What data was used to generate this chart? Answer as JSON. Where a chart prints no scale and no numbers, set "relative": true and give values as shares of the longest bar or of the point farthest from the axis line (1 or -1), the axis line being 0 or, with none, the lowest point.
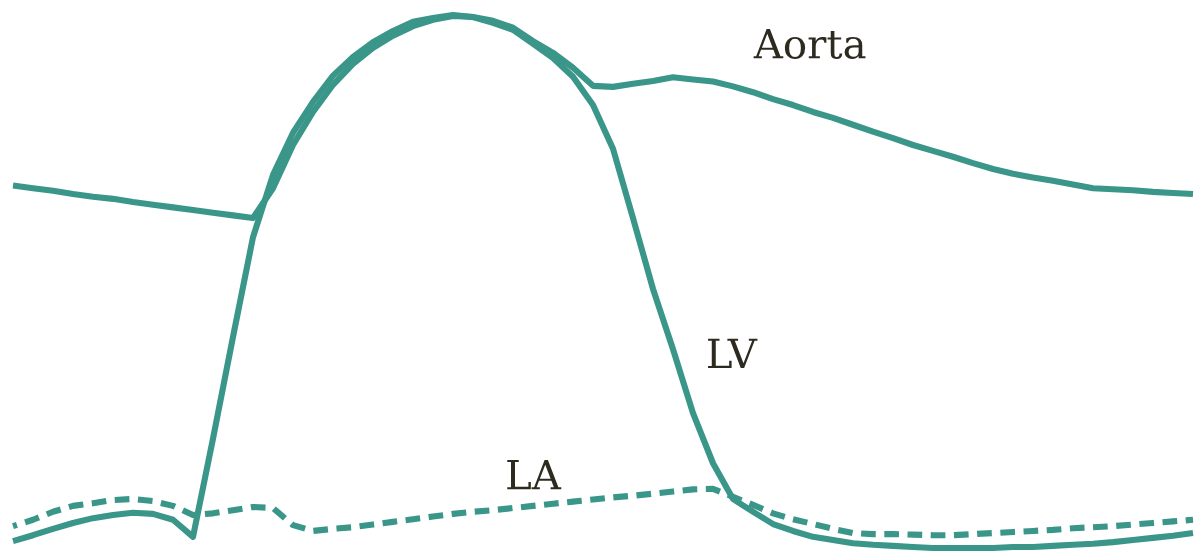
{
  "chart_data": {
    "type": "line",
    "relative": true,
    "categories": [
      null,
      null,
      null,
      null,
      null,
      null,
      null,
      null,
      null,
      null,
      null,
      null,
      null,
      null,
      null,
      null,
      null,
      null,
      null,
      null,
      null,
      null,
      null,
      null,
      null,
      null,
      null,
      null,
      null,
      null,
      null,
      null,
      null,
      null,
      null,
      null,
      null,
      null,
      null,
      null,
      null,
      null,
      null,
      null,
      null,
      null,
      null,
      null,
      null,
      null,
      null,
      null,
      null,
      null,
      null,
      null,
      null,
      null,
      null,
      null
    ],
    "series": [
      {
        "name": "Aorta",
        "color": "#3b968a",
        "line_style": "solid",
        "values": [
          0.68,
          0.675,
          0.67,
          0.664,
          0.659,
          0.655,
          0.649,
          0.644,
          0.639,
          0.634,
          0.629,
          0.624,
          0.619,
          0.675,
          0.756,
          0.818,
          0.869,
          0.908,
          0.938,
          0.961,
          0.979,
          0.991,
          0.998,
          0.996,
          0.989,
          0.976,
          0.951,
          0.929,
          0.901,
          0.867,
          0.865,
          0.871,
          0.876,
          0.883,
          0.879,
          0.875,
          0.866,
          0.855,
          0.842,
          0.831,
          0.818,
          0.807,
          0.794,
          0.781,
          0.769,
          0.756,
          0.745,
          0.734,
          0.722,
          0.711,
          0.702,
          0.695,
          0.689,
          0.682,
          0.675,
          0.673,
          0.671,
          0.668,
          0.666,
          0.664
        ]
      },
      {
        "name": "LV",
        "color": "#3b968a",
        "line_style": "solid",
        "values": [
          0.013,
          0.024,
          0.036,
          0.047,
          0.056,
          0.062,
          0.066,
          0.064,
          0.053,
          0.021,
          0.205,
          0.396,
          0.583,
          0.7,
          0.779,
          0.837,
          0.886,
          0.921,
          0.949,
          0.97,
          0.987,
          0.994,
          1.0,
          0.996,
          0.985,
          0.972,
          0.946,
          0.919,
          0.884,
          0.831,
          0.749,
          0.619,
          0.486,
          0.373,
          0.253,
          0.159,
          0.092,
          0.068,
          0.045,
          0.032,
          0.021,
          0.015,
          0.009,
          0.006,
          0.004,
          0.002,
          0.0,
          0.0,
          0.0,
          0.0,
          0.002,
          0.002,
          0.004,
          0.006,
          0.008,
          0.011,
          0.015,
          0.019,
          0.023,
          0.028
        ]
      },
      {
        "name": "LA",
        "color": "#3b968a",
        "line_style": "dashed",
        "values": [
          0.041,
          0.053,
          0.068,
          0.079,
          0.084,
          0.09,
          0.092,
          0.088,
          0.079,
          0.062,
          0.065,
          0.071,
          0.077,
          0.075,
          0.043,
          0.032,
          0.036,
          0.039,
          0.044,
          0.049,
          0.054,
          0.059,
          0.064,
          0.068,
          0.071,
          0.075,
          0.079,
          0.083,
          0.087,
          0.091,
          0.095,
          0.098,
          0.102,
          0.106,
          0.11,
          0.111,
          0.096,
          0.081,
          0.065,
          0.054,
          0.045,
          0.036,
          0.028,
          0.026,
          0.026,
          0.025,
          0.024,
          0.024,
          0.026,
          0.028,
          0.03,
          0.032,
          0.034,
          0.037,
          0.039,
          0.041,
          0.044,
          0.047,
          0.05,
          0.053
        ]
      }
    ]
  }
}
